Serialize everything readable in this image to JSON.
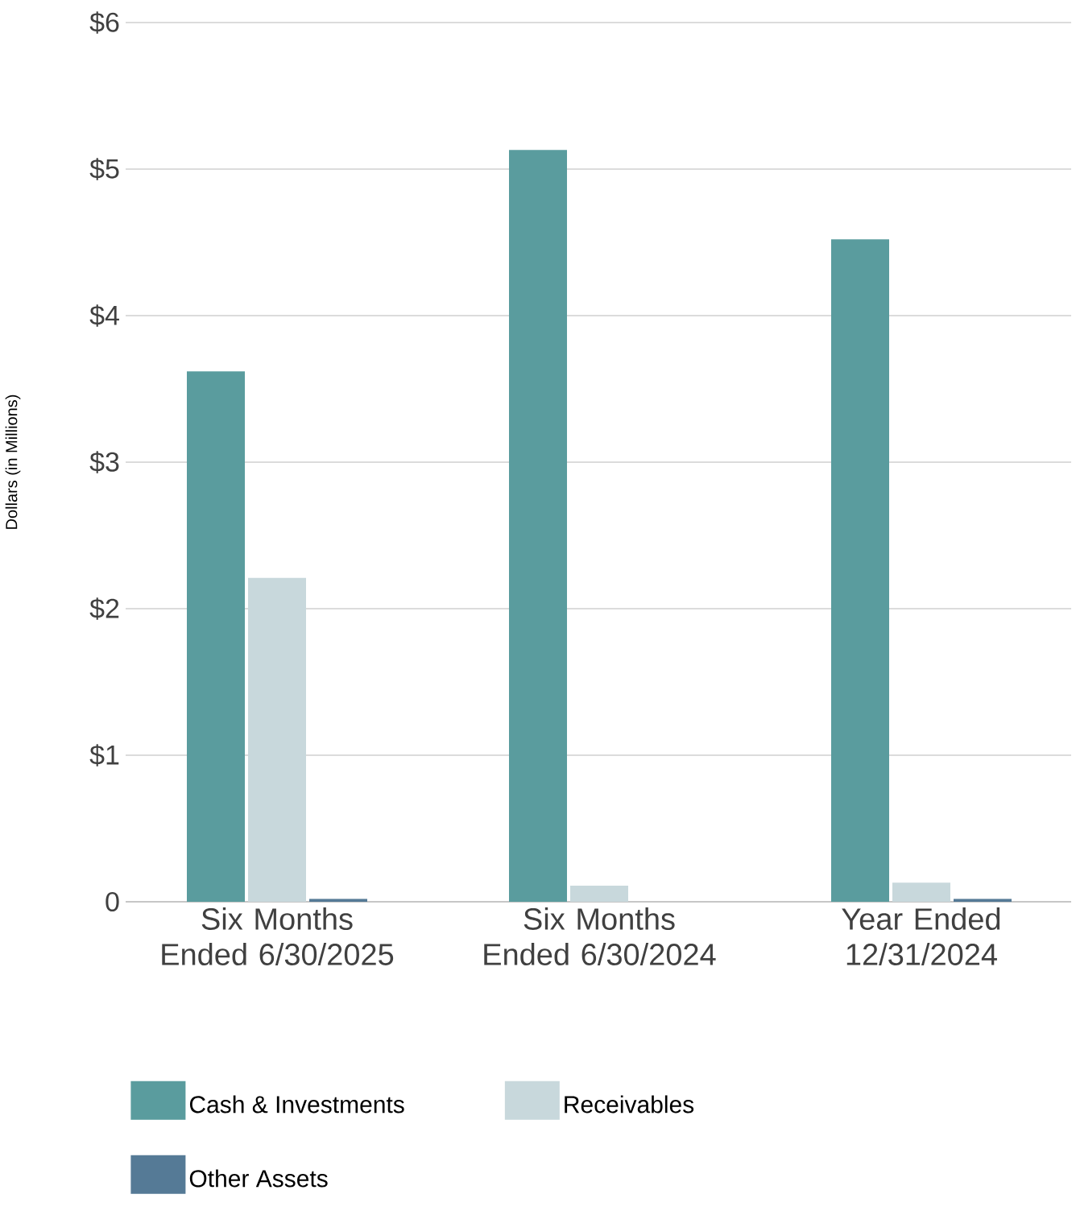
{
  "chart_data": {
    "type": "bar",
    "ylabel": "Dollars (in Millions)",
    "categories": [
      "Six Months Ended 6/30/2025",
      "Six Months Ended 6/30/2024",
      "Year Ended 12/31/2024"
    ],
    "series": [
      {
        "name": "Cash & Investments",
        "color": "#5a9c9e",
        "values": [
          3.62,
          5.13,
          4.52
        ]
      },
      {
        "name": "Receivables",
        "color": "#c8d8dc",
        "values": [
          2.21,
          0.11,
          0.13
        ]
      },
      {
        "name": "Other Assets",
        "color": "#557a96",
        "values": [
          0.02,
          null,
          0.02
        ]
      }
    ],
    "ylim": [
      0,
      6
    ],
    "yticks": [
      0,
      {
        "value": 1,
        "label": "$1"
      },
      {
        "value": 2,
        "label": "$2"
      },
      {
        "value": 3,
        "label": "$3"
      },
      {
        "value": 4,
        "label": "$4"
      },
      {
        "value": 5,
        "label": "$5"
      },
      {
        "value": 6,
        "label": "$6"
      }
    ],
    "grid": "y",
    "legend": "bottom"
  }
}
